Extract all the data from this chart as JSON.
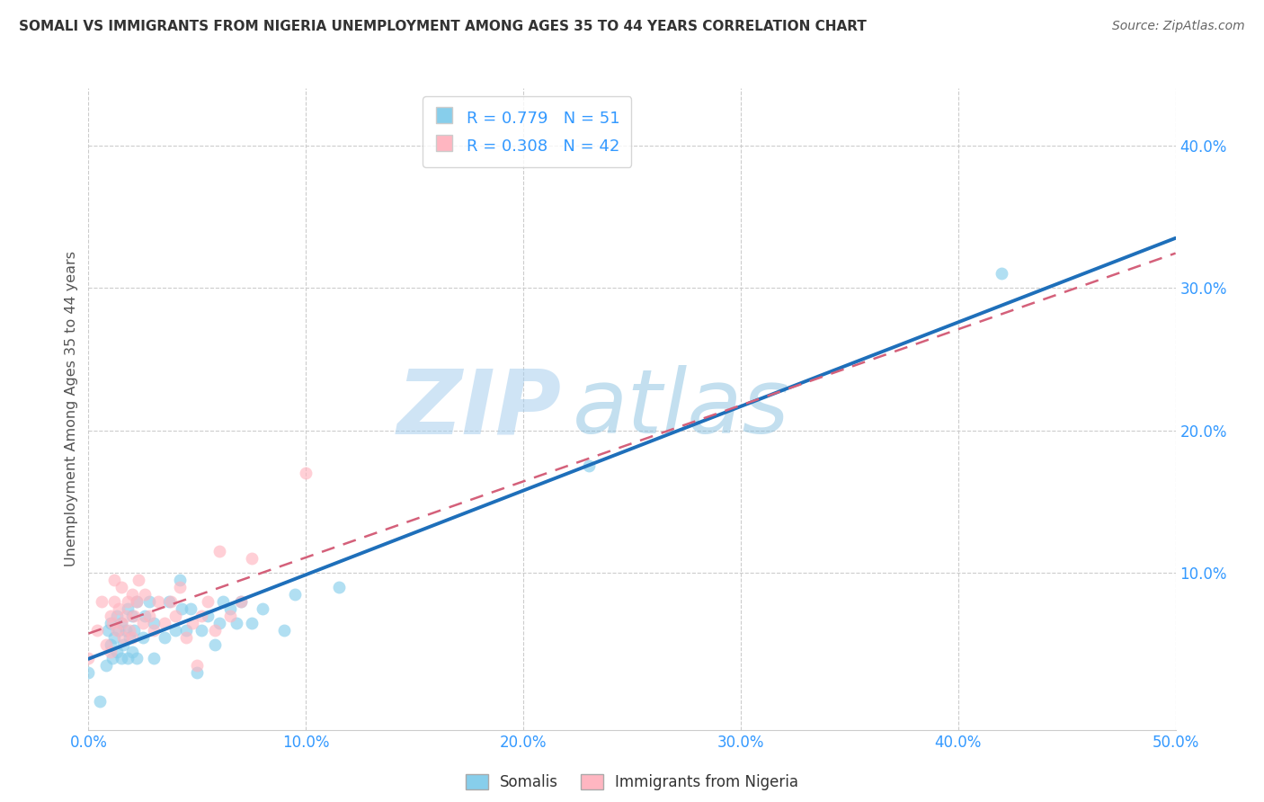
{
  "title": "SOMALI VS IMMIGRANTS FROM NIGERIA UNEMPLOYMENT AMONG AGES 35 TO 44 YEARS CORRELATION CHART",
  "source": "Source: ZipAtlas.com",
  "ylabel": "Unemployment Among Ages 35 to 44 years",
  "xlim": [
    0.0,
    0.5
  ],
  "ylim": [
    -0.01,
    0.44
  ],
  "xticks": [
    0.0,
    0.1,
    0.2,
    0.3,
    0.4,
    0.5
  ],
  "yticks": [
    0.1,
    0.2,
    0.3,
    0.4
  ],
  "somali_R": 0.779,
  "somali_N": 51,
  "nigeria_R": 0.308,
  "nigeria_N": 42,
  "somali_color": "#87CEEB",
  "nigeria_color": "#FFB6C1",
  "somali_line_color": "#1E6FBA",
  "nigeria_line_color": "#D4607A",
  "background_color": "#FFFFFF",
  "watermark_zip": "ZIP",
  "watermark_atlas": "atlas",
  "somali_x": [
    0.0,
    0.005,
    0.008,
    0.009,
    0.01,
    0.01,
    0.011,
    0.012,
    0.013,
    0.013,
    0.014,
    0.015,
    0.015,
    0.016,
    0.017,
    0.018,
    0.018,
    0.019,
    0.02,
    0.02,
    0.021,
    0.022,
    0.022,
    0.025,
    0.026,
    0.028,
    0.03,
    0.03,
    0.035,
    0.037,
    0.04,
    0.042,
    0.043,
    0.045,
    0.047,
    0.05,
    0.052,
    0.055,
    0.058,
    0.06,
    0.062,
    0.065,
    0.068,
    0.07,
    0.075,
    0.08,
    0.09,
    0.095,
    0.115,
    0.23,
    0.42
  ],
  "somali_y": [
    0.03,
    0.01,
    0.035,
    0.06,
    0.05,
    0.065,
    0.04,
    0.055,
    0.045,
    0.07,
    0.06,
    0.04,
    0.065,
    0.05,
    0.06,
    0.04,
    0.075,
    0.055,
    0.045,
    0.07,
    0.06,
    0.04,
    0.08,
    0.055,
    0.07,
    0.08,
    0.04,
    0.065,
    0.055,
    0.08,
    0.06,
    0.095,
    0.075,
    0.06,
    0.075,
    0.03,
    0.06,
    0.07,
    0.05,
    0.065,
    0.08,
    0.075,
    0.065,
    0.08,
    0.065,
    0.075,
    0.06,
    0.085,
    0.09,
    0.175,
    0.31
  ],
  "nigeria_x": [
    0.0,
    0.004,
    0.006,
    0.008,
    0.01,
    0.01,
    0.011,
    0.012,
    0.012,
    0.013,
    0.014,
    0.015,
    0.015,
    0.016,
    0.017,
    0.018,
    0.019,
    0.02,
    0.02,
    0.021,
    0.022,
    0.023,
    0.025,
    0.026,
    0.028,
    0.03,
    0.032,
    0.035,
    0.038,
    0.04,
    0.042,
    0.045,
    0.048,
    0.05,
    0.052,
    0.055,
    0.058,
    0.06,
    0.065,
    0.07,
    0.075,
    0.1
  ],
  "nigeria_y": [
    0.04,
    0.06,
    0.08,
    0.05,
    0.045,
    0.07,
    0.065,
    0.08,
    0.095,
    0.06,
    0.075,
    0.065,
    0.09,
    0.055,
    0.07,
    0.08,
    0.06,
    0.055,
    0.085,
    0.07,
    0.08,
    0.095,
    0.065,
    0.085,
    0.07,
    0.06,
    0.08,
    0.065,
    0.08,
    0.07,
    0.09,
    0.055,
    0.065,
    0.035,
    0.07,
    0.08,
    0.06,
    0.115,
    0.07,
    0.08,
    0.11,
    0.17
  ]
}
